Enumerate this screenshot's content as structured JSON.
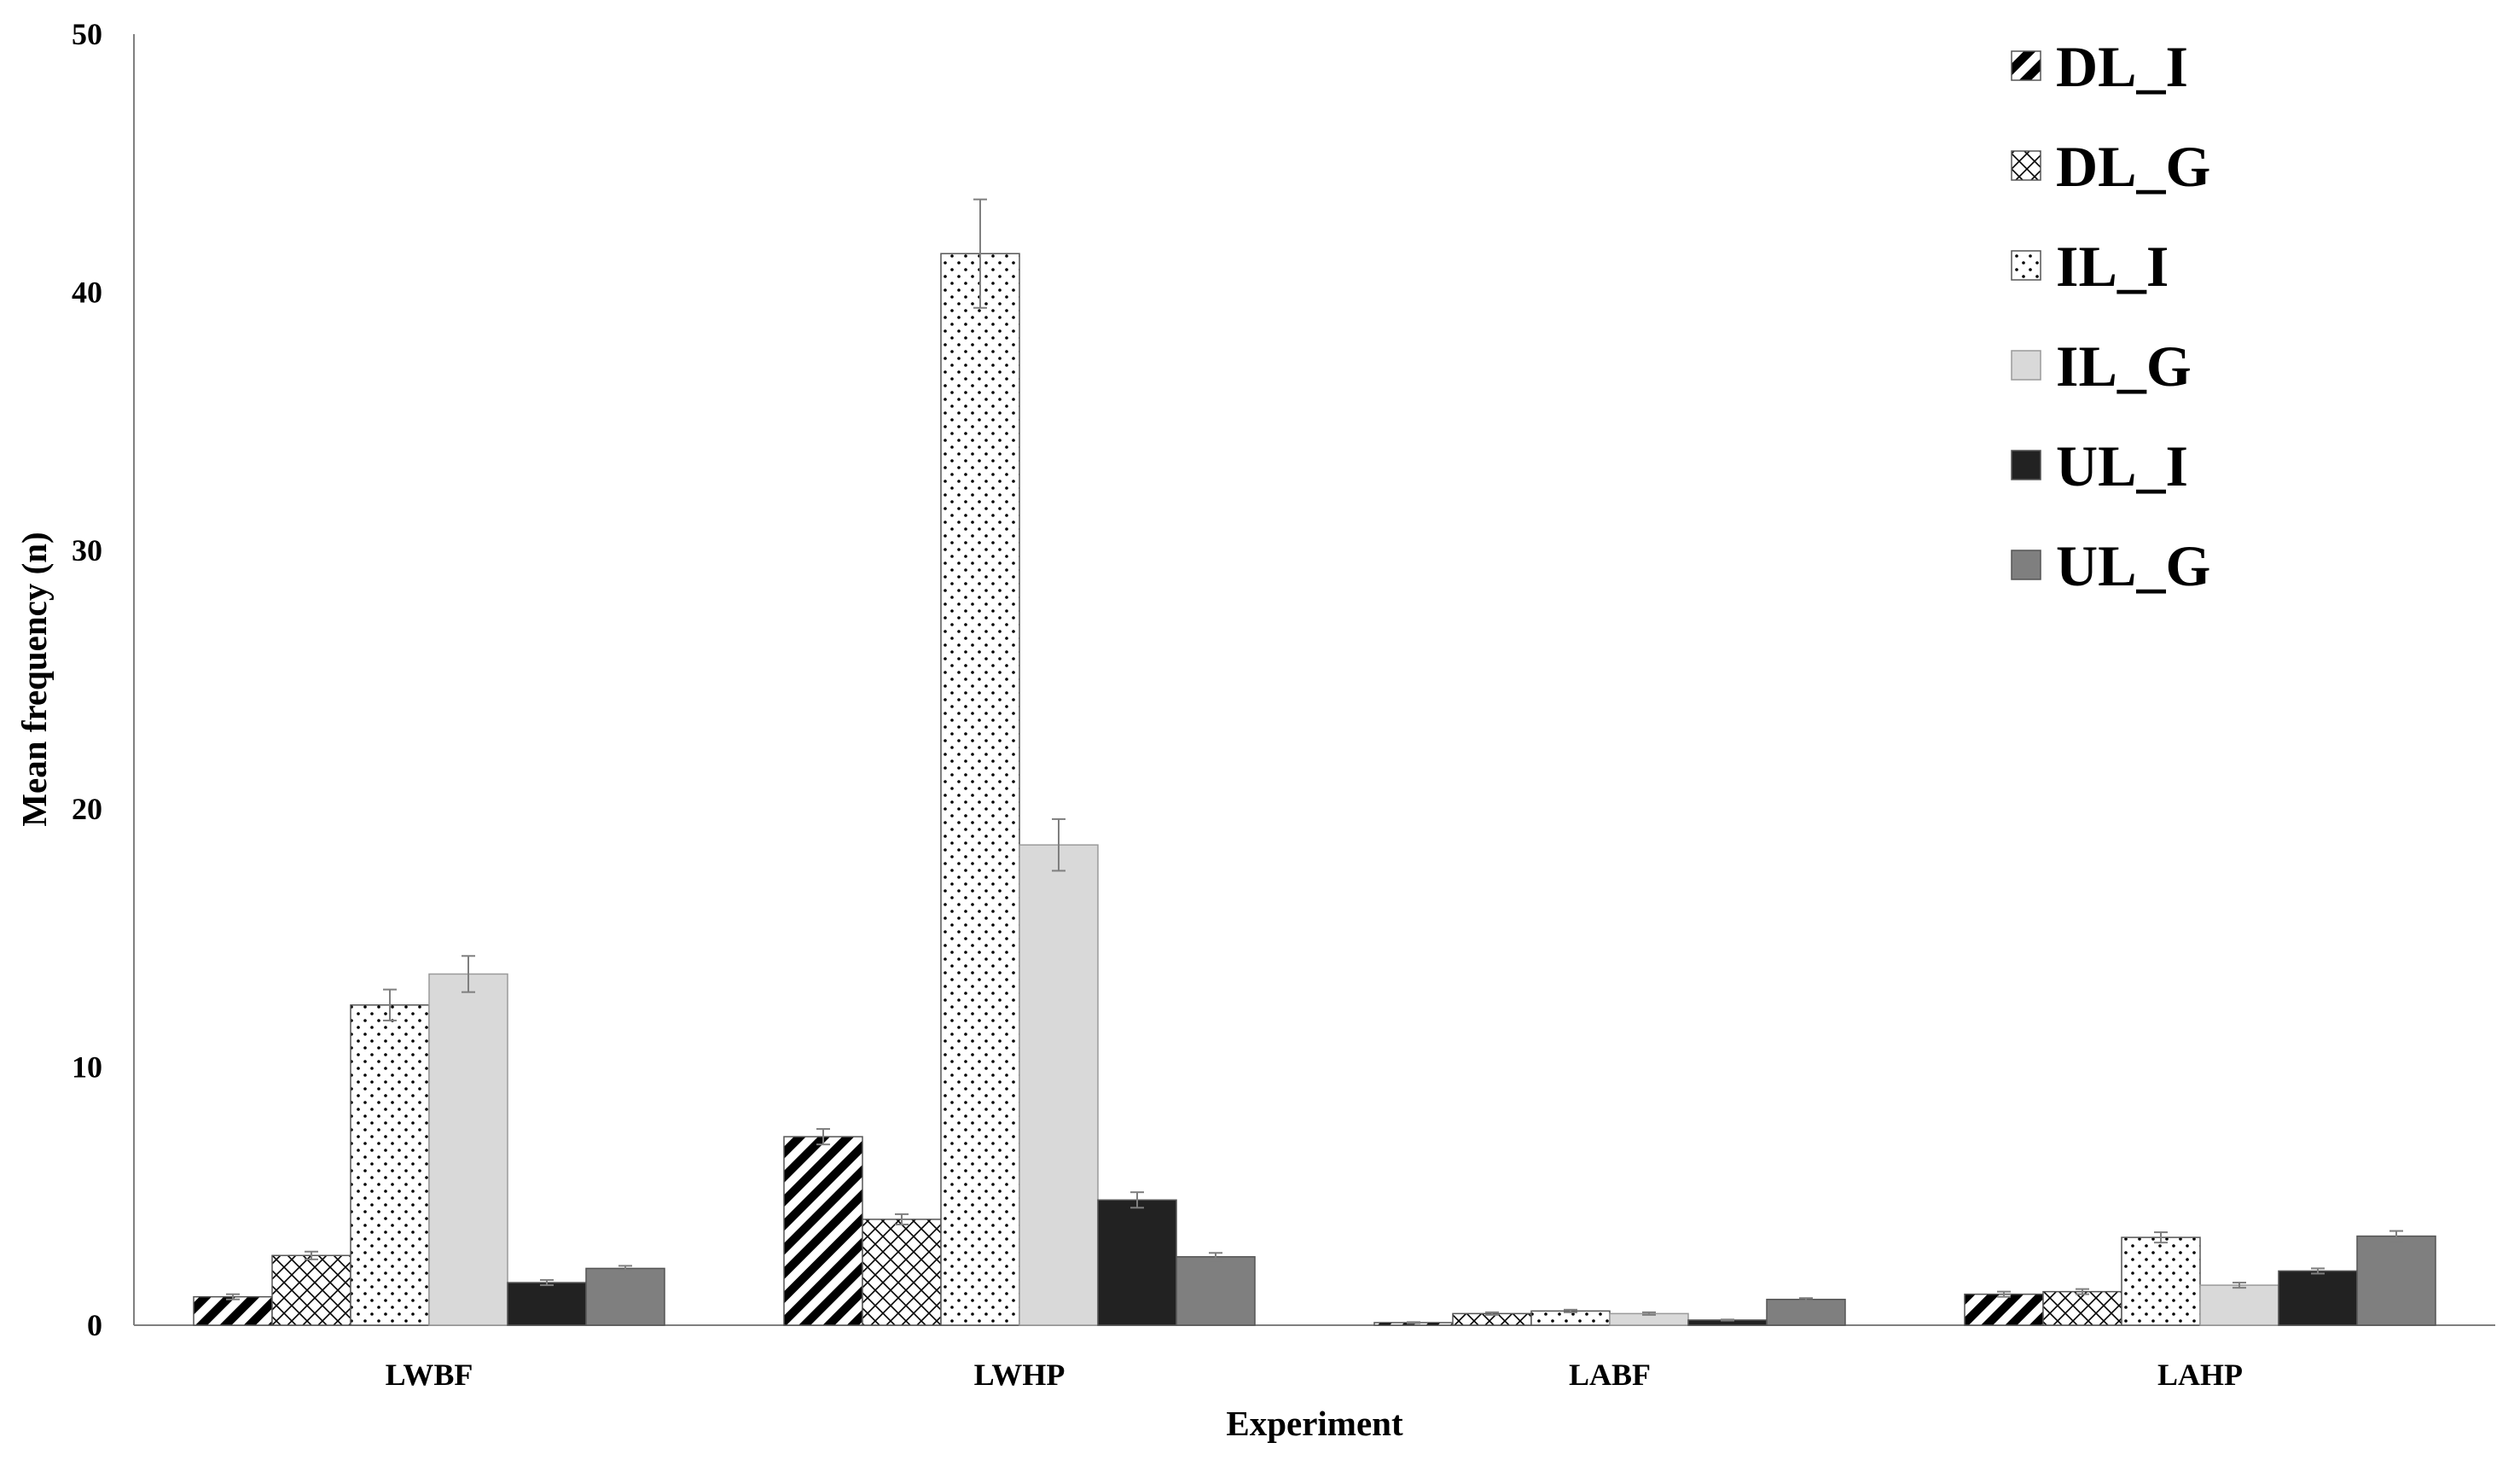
{
  "chart_data": {
    "type": "bar",
    "title": "",
    "xlabel": "Experiment",
    "ylabel": "Mean frequency (n)",
    "categories": [
      "LWBF",
      "LWHP",
      "LABF",
      "LAHP"
    ],
    "ylim": [
      0,
      50
    ],
    "yticks": [
      0,
      10,
      20,
      30,
      40,
      50
    ],
    "grid": false,
    "legend": "top-right",
    "series": [
      {
        "name": "DL_I",
        "pattern": "diagonal-hatch",
        "color": "#000000",
        "values": [
          1.1,
          7.3,
          0.1,
          1.2
        ],
        "errors": [
          0.1,
          0.3,
          0.02,
          0.1
        ]
      },
      {
        "name": "DL_G",
        "pattern": "cross-hatch",
        "color": "#000000",
        "values": [
          2.7,
          4.1,
          0.45,
          1.3
        ],
        "errors": [
          0.15,
          0.2,
          0.05,
          0.1
        ]
      },
      {
        "name": "IL_I",
        "pattern": "dots",
        "color": "#000000",
        "values": [
          12.4,
          41.5,
          0.55,
          3.4
        ],
        "errors": [
          0.6,
          2.1,
          0.05,
          0.2
        ]
      },
      {
        "name": "IL_G",
        "pattern": "solid",
        "color": "#d9d9d9",
        "values": [
          13.6,
          18.6,
          0.45,
          1.55
        ],
        "errors": [
          0.7,
          1.0,
          0.05,
          0.1
        ]
      },
      {
        "name": "UL_I",
        "pattern": "solid",
        "color": "#222222",
        "values": [
          1.65,
          4.85,
          0.2,
          2.1
        ],
        "errors": [
          0.1,
          0.3,
          0.02,
          0.1
        ]
      },
      {
        "name": "UL_G",
        "pattern": "solid",
        "color": "#7f7f7f",
        "values": [
          2.2,
          2.65,
          1.0,
          3.45
        ],
        "errors": [
          0.1,
          0.15,
          0.05,
          0.2
        ]
      }
    ]
  }
}
